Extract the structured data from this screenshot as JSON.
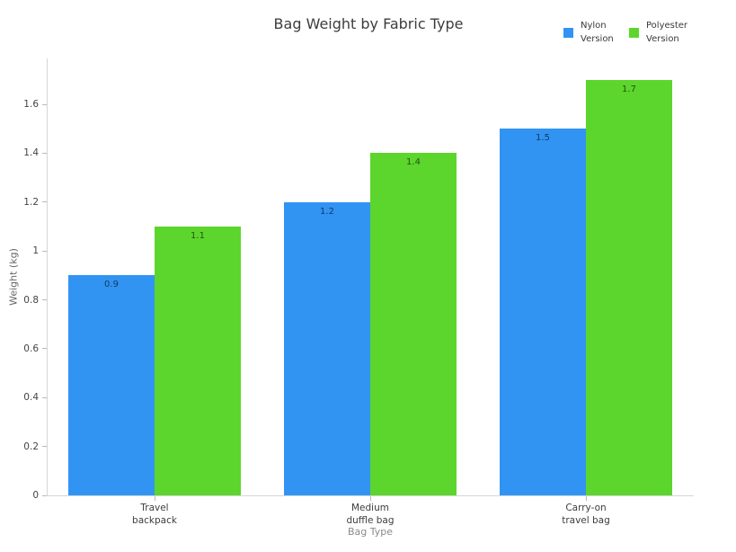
{
  "chart_data": {
    "type": "bar",
    "title": "Bag Weight by Fabric Type",
    "xlabel": "Bag Type",
    "ylabel": "Weight (kg)",
    "categories": [
      "Travel\nbackpack",
      "Medium\nduffle bag",
      "Carry-on\ntravel bag"
    ],
    "series": [
      {
        "name": "Nylon Version",
        "color": "#3194f3",
        "values": [
          0.9,
          1.2,
          1.5
        ]
      },
      {
        "name": "Polyester Version",
        "color": "#5cd62c",
        "values": [
          1.1,
          1.4,
          1.7
        ]
      }
    ],
    "bar_value_labels": [
      [
        "0.9",
        "1.2",
        "1.5"
      ],
      [
        "1.1",
        "1.4",
        "1.7"
      ]
    ],
    "yticks": [
      {
        "value": 0,
        "label": "0"
      },
      {
        "value": 0.2,
        "label": "0.2"
      },
      {
        "value": 0.4,
        "label": "0.4"
      },
      {
        "value": 0.6,
        "label": "0.6"
      },
      {
        "value": 0.8,
        "label": "0.8"
      },
      {
        "value": 1,
        "label": "1"
      },
      {
        "value": 1.2,
        "label": "1.2"
      },
      {
        "value": 1.4,
        "label": "1.4"
      },
      {
        "value": 1.6,
        "label": "1.6"
      }
    ],
    "ylim": [
      0,
      1.79
    ],
    "grid": false,
    "legend_position": "top-right",
    "colors": {
      "nylon_blue": "#3194f3",
      "polyester_green": "#5cd62c",
      "axis_line": "#d6d6d6",
      "tick_text": "#444444",
      "title_text": "#3c3c3c"
    }
  }
}
